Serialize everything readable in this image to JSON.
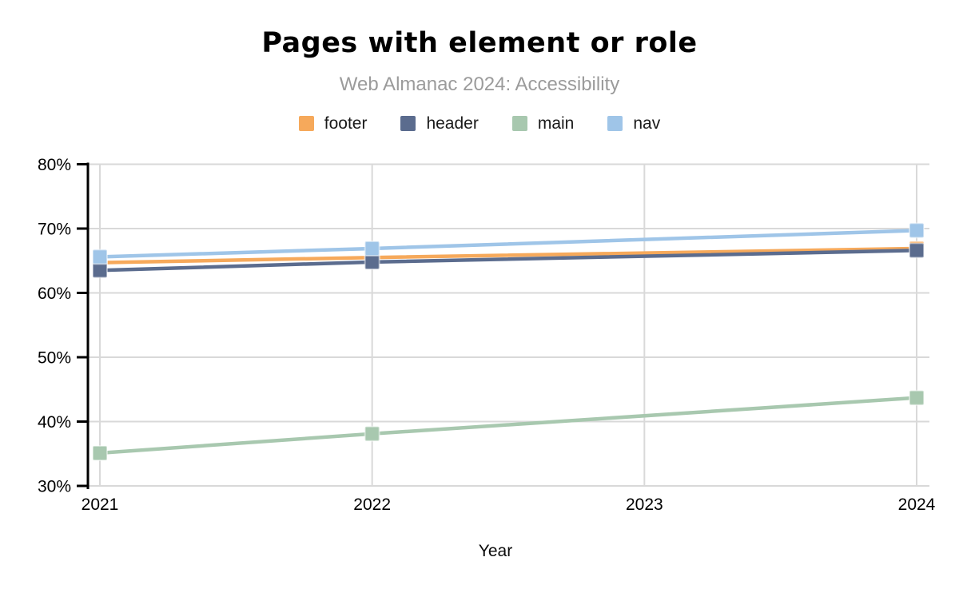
{
  "chart_data": {
    "type": "line",
    "title": "Pages with element or role",
    "subtitle": "Web Almanac 2024: Accessibility",
    "xlabel": "Year",
    "ylabel": "",
    "y_unit": "%",
    "ylim": [
      30,
      80
    ],
    "xlim": [
      2021,
      2024
    ],
    "grid": true,
    "legend_position": "top",
    "x_ticks": [
      2021,
      2022,
      2023,
      2024
    ],
    "y_ticks": [
      30,
      40,
      50,
      60,
      70,
      80
    ],
    "y_tick_labels": [
      "30%",
      "40%",
      "50%",
      "60%",
      "70%",
      "80%"
    ],
    "x": [
      2021,
      2022,
      2024
    ],
    "series": [
      {
        "name": "footer",
        "color": "#f6a95b",
        "values": [
          64.7,
          65.5,
          66.9
        ]
      },
      {
        "name": "header",
        "color": "#5b6c8e",
        "values": [
          63.5,
          64.8,
          66.6
        ]
      },
      {
        "name": "main",
        "color": "#a8c8af",
        "values": [
          35.1,
          38.1,
          43.7
        ]
      },
      {
        "name": "nav",
        "color": "#9fc5e8",
        "values": [
          65.6,
          66.9,
          69.7
        ]
      }
    ],
    "colors": {
      "grid": "#d9d9d9",
      "axis": "#000000",
      "subtitle_text": "#9b9b9b",
      "tick_text": "#000000"
    }
  }
}
